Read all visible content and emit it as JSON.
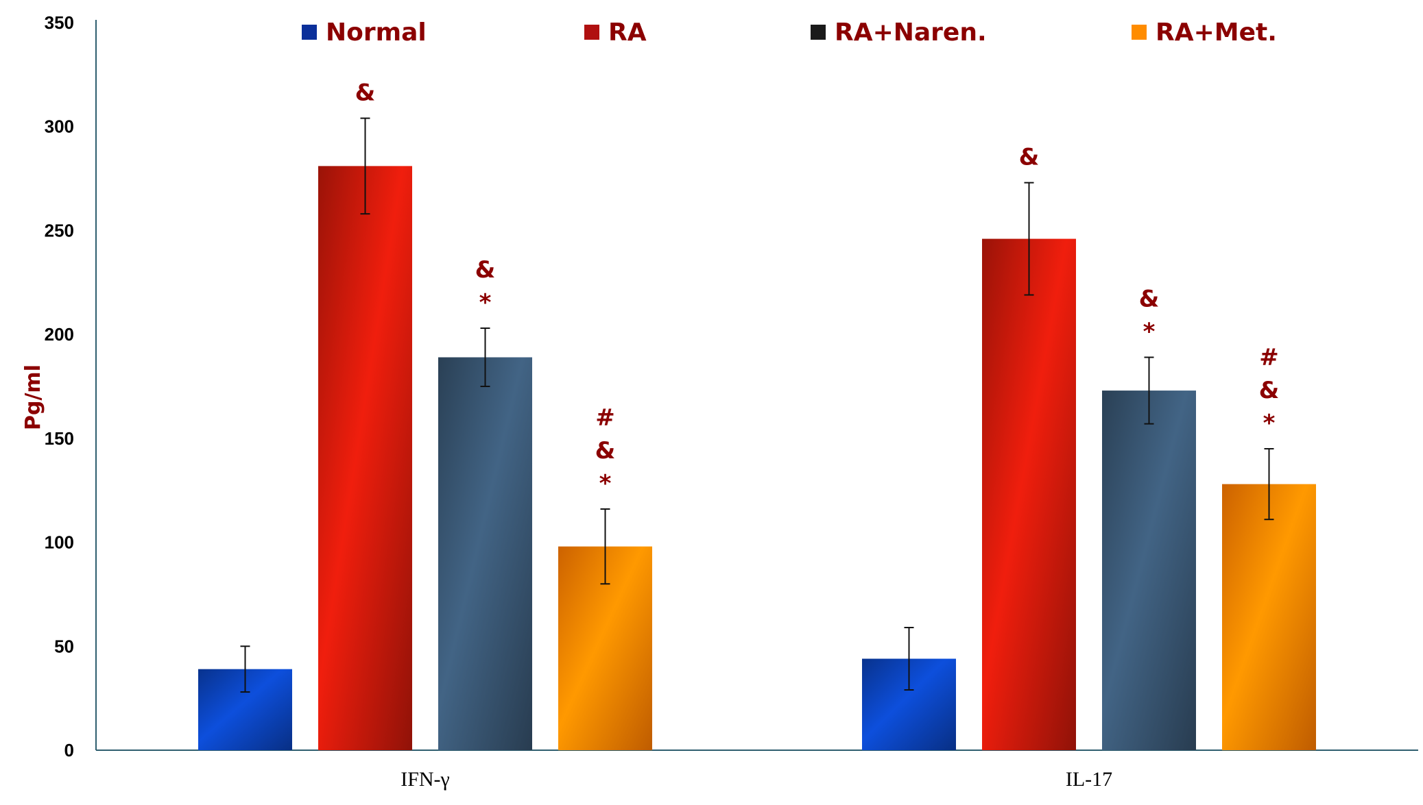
{
  "chart_data": {
    "type": "bar",
    "categories": [
      "IFN-γ",
      "IL-17"
    ],
    "series": [
      {
        "name": "Normal",
        "values": [
          39,
          44
        ],
        "errors": [
          11,
          15
        ],
        "annotations": [
          [],
          []
        ],
        "color": "#0A3FB0"
      },
      {
        "name": "RA",
        "values": [
          281,
          246
        ],
        "errors": [
          23,
          27
        ],
        "annotations": [
          [
            "&"
          ],
          [
            "&"
          ]
        ],
        "color": "#C0180A"
      },
      {
        "name": "RA+Naren.",
        "values": [
          189,
          173
        ],
        "errors": [
          14,
          16
        ],
        "annotations": [
          [
            "&",
            "*"
          ],
          [
            "&",
            "*"
          ]
        ],
        "color": "#35506A"
      },
      {
        "name": "RA+Met.",
        "values": [
          98,
          128
        ],
        "errors": [
          18,
          17
        ],
        "annotations": [
          [
            "#",
            "&",
            "*"
          ],
          [
            "#",
            "&",
            "*"
          ]
        ],
        "color": "#FF7A00"
      }
    ],
    "legend_colors": [
      "#0B2F9A",
      "#B01010",
      "#1A1A1A",
      "#FF8C00"
    ],
    "xlabel": "",
    "ylabel": "Pg/ml",
    "ylim": [
      0,
      350
    ],
    "yticks": [
      0,
      50,
      100,
      150,
      200,
      250,
      300,
      350
    ],
    "grid": false,
    "legend_position": "top"
  }
}
